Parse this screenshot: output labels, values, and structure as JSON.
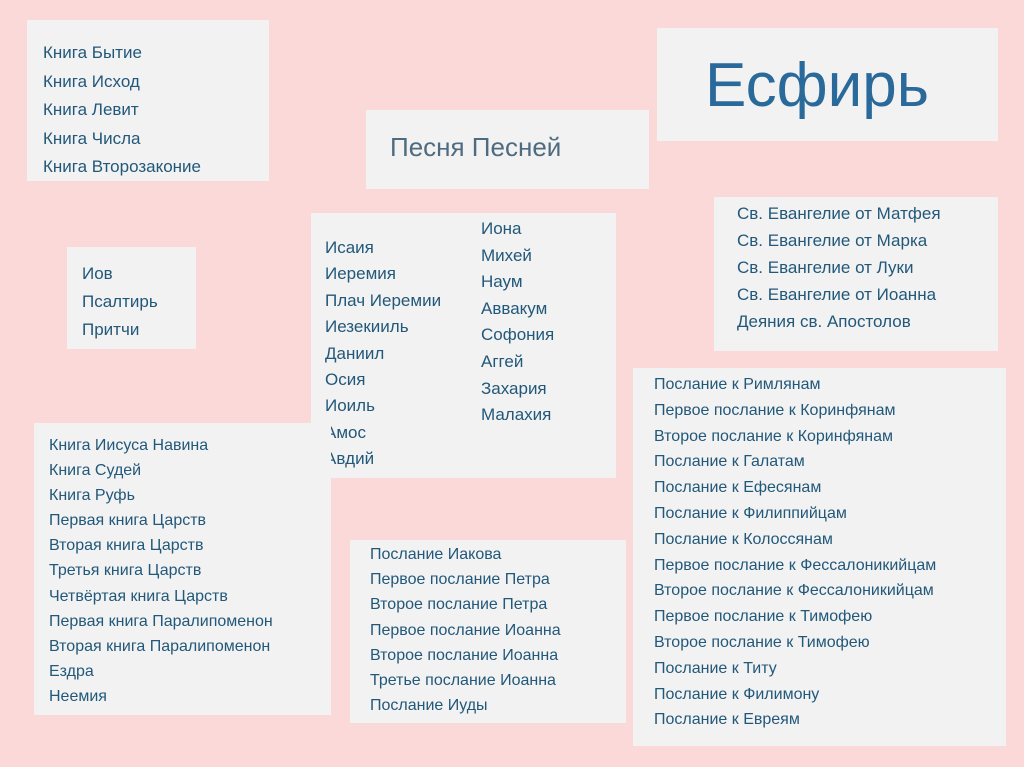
{
  "slide": {
    "pentateuch": [
      "Книга Бытие",
      "Книга Исход",
      "Книга Левит",
      "Книга Числа",
      "Книга Второзаконие"
    ],
    "song_title": "Песня Песней",
    "esther_title": "Есфирь",
    "wisdom": [
      "Иов",
      "Псалтирь",
      "Притчи"
    ],
    "prophets_left": [
      "Исаия",
      "Иеремия",
      "Плач Иеремии",
      "Иезекииль",
      "Даниил",
      "Осия",
      "Иоиль",
      "Амос",
      "Авдий"
    ],
    "prophets_right": [
      "Иона",
      "Михей",
      "Наум",
      "Аввакум",
      "Софония",
      "Аггей",
      "Захария",
      "Малахия"
    ],
    "gospels": [
      "Св. Евангелие от Матфея",
      "Св. Евангелие от Марка",
      "Св. Евангелие от Луки",
      "Св. Евангелие от Иоанна",
      "Деяния св. Апостолов"
    ],
    "histories": [
      "Книга Иисуса Навина",
      "Книга Судей",
      "Книга Руфь",
      "Первая книга Царств",
      "Вторая книга Царств",
      "Третья книга Царств",
      "Четвёртая книга Царств",
      "Первая книга Паралипоменон",
      "Вторая книга Паралипоменон",
      "Ездра",
      "Неемия"
    ],
    "catholic_epistles": [
      "Послание Иакова",
      "Первое послание Петра",
      "Второе послание Петра",
      "Первое послание Иоанна",
      "Второе послание Иоанна",
      "Третье послание Иоанна",
      "Послание Иуды"
    ],
    "pauline_epistles": [
      "Послание к Римлянам",
      "Первое послание к Коринфянам",
      "Второе послание к Коринфянам",
      "Послание к Галатам",
      "Послание к Ефесянам",
      "Послание к Филиппийцам",
      "Послание к Колоссянам",
      "Первое послание к Фессалоникийцам",
      "Второе послание к Фессалоникийцам",
      "Первое послание к Тимофею",
      "Второе послание к Тимофею",
      "Послание к Титу",
      "Послание к Филимону",
      "Послание к Евреям"
    ]
  }
}
